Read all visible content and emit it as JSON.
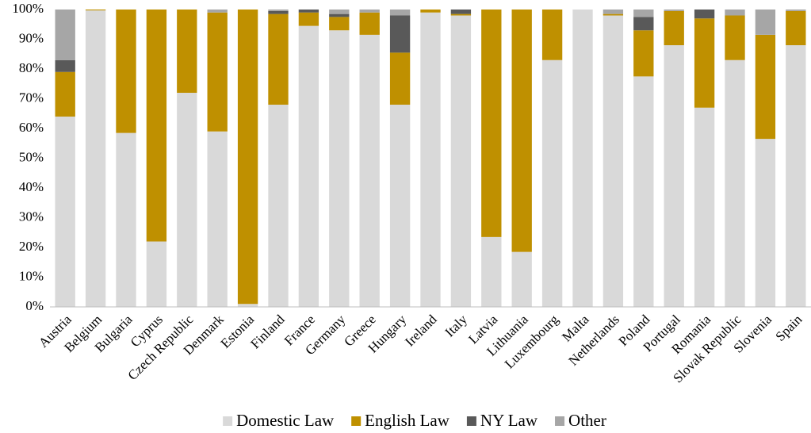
{
  "chart_data": {
    "type": "stacked_bar",
    "categories": [
      "Austria",
      "Belgium",
      "Bulgaria",
      "Cyprus",
      "Czech Republic",
      "Denmark",
      "Estonia",
      "Finland",
      "France",
      "Germany",
      "Greece",
      "Hungary",
      "Ireland",
      "Italy",
      "Latvia",
      "Lithuania",
      "Luxembourg",
      "Malta",
      "Netherlands",
      "Poland",
      "Portugal",
      "Romania",
      "Slovak Republic",
      "Slovenia",
      "Spain"
    ],
    "series": [
      {
        "name": "Domestic Law",
        "color": "#d9d9d9",
        "values": [
          64,
          99.7,
          58.5,
          22,
          72,
          59,
          1,
          68,
          94.5,
          93,
          91.5,
          68,
          99,
          98,
          23.5,
          18.5,
          83,
          100,
          98,
          77.5,
          88,
          67,
          83,
          56.5,
          88
        ]
      },
      {
        "name": "English Law",
        "color": "#bf9000",
        "values": [
          15,
          0.3,
          41.5,
          78,
          28,
          40,
          99,
          30.5,
          4.5,
          4.5,
          7.5,
          17.5,
          1,
          0.5,
          76.5,
          81.5,
          17,
          0,
          0.5,
          15.5,
          11.5,
          30,
          15,
          35,
          11.5
        ]
      },
      {
        "name": "NY Law",
        "color": "#595959",
        "values": [
          4,
          0,
          0,
          0,
          0,
          0,
          0,
          1,
          1,
          1,
          0,
          12.5,
          0,
          1.5,
          0,
          0,
          0,
          0,
          0,
          4.5,
          0,
          3,
          0,
          0,
          0
        ]
      },
      {
        "name": "Other",
        "color": "#a6a6a6",
        "values": [
          17,
          0,
          0,
          0,
          0,
          1,
          0,
          0.5,
          0,
          1.5,
          1,
          2,
          0,
          0,
          0,
          0,
          0,
          0,
          1.5,
          2.5,
          0.5,
          0,
          2,
          8.5,
          0.5
        ]
      }
    ],
    "ylim": [
      0,
      100
    ],
    "yticks": [
      {
        "value": 0,
        "label": "0%"
      },
      {
        "value": 10,
        "label": "10%"
      },
      {
        "value": 20,
        "label": "20%"
      },
      {
        "value": 30,
        "label": "30%"
      },
      {
        "value": 40,
        "label": "40%"
      },
      {
        "value": 50,
        "label": "50%"
      },
      {
        "value": 60,
        "label": "60%"
      },
      {
        "value": 70,
        "label": "70%"
      },
      {
        "value": 80,
        "label": "80%"
      },
      {
        "value": 90,
        "label": "90%"
      },
      {
        "value": 100,
        "label": "100%"
      }
    ],
    "legend": "bottom"
  }
}
